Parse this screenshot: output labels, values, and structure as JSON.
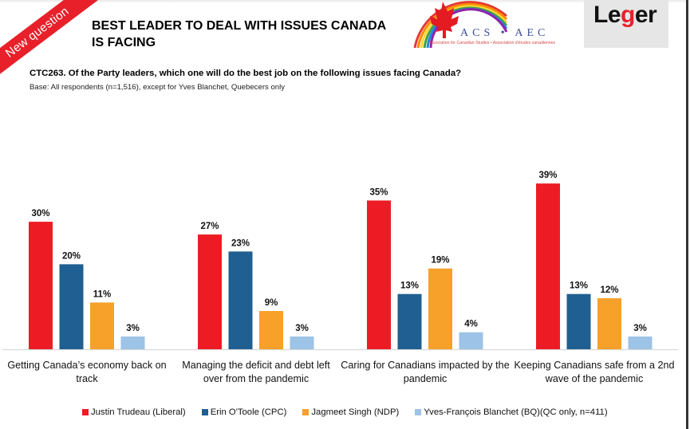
{
  "badge": "New question",
  "title": "BEST LEADER TO DEAL WITH ISSUES CANADA IS FACING",
  "question": "CTC263. Of the Party leaders, which one will do the best job on the following issues facing Canada?",
  "base": "Base: All respondents (n=1,516), except for Yves Blanchet, Quebecers only",
  "logos": {
    "acs": "ACS • AEC",
    "acs_sub": "Association for Canadian Studies • Association d'études canadiennes",
    "leger": "Leger"
  },
  "colors": {
    "liberal": "#ed1c24",
    "cpc": "#1f5f91",
    "ndp": "#f7a02a",
    "bq": "#9dc3e6",
    "badge": "#e8202a"
  },
  "chart_data": {
    "type": "bar",
    "title": "BEST LEADER TO DEAL WITH ISSUES CANADA IS FACING",
    "xlabel": "",
    "ylabel": "",
    "ylim": [
      0,
      40
    ],
    "grid": false,
    "legend_position": "bottom",
    "categories": [
      "Getting Canada’s economy back on track",
      "Managing the deficit and debt left over from the pandemic",
      "Caring for Canadians impacted by the pandemic",
      "Keeping Canadians safe from a 2nd wave of the pandemic"
    ],
    "series": [
      {
        "name": "Justin Trudeau (Liberal)",
        "color": "#ed1c24",
        "values": [
          30,
          27,
          35,
          39
        ],
        "labels": [
          "30%",
          "27%",
          "35%",
          "39%"
        ]
      },
      {
        "name": "Erin O'Toole (CPC)",
        "color": "#1f5f91",
        "values": [
          20,
          23,
          13,
          13
        ],
        "labels": [
          "20%",
          "23%",
          "13%",
          "13%"
        ]
      },
      {
        "name": "Jagmeet Singh (NDP)",
        "color": "#f7a02a",
        "values": [
          11,
          9,
          19,
          12
        ],
        "labels": [
          "11%",
          "9%",
          "19%",
          "12%"
        ]
      },
      {
        "name": "Yves-François Blanchet (BQ)(QC only, n=411)",
        "color": "#9dc3e6",
        "values": [
          3,
          3,
          4,
          3
        ],
        "labels": [
          "3%",
          "3%",
          "4%",
          "3%"
        ]
      }
    ]
  }
}
